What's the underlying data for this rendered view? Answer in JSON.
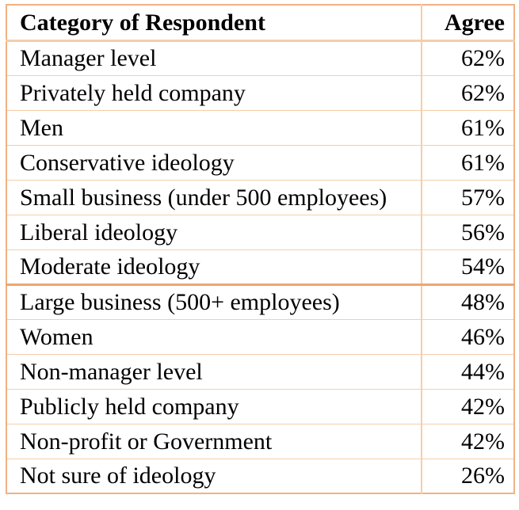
{
  "colors": {
    "page_bg": "#ffffff",
    "border_outer": "#f2b183",
    "border_thin": "#f6cda9",
    "border_thick": "#eda671",
    "text": "#000000"
  },
  "table": {
    "columns": [
      {
        "label": "Category of Respondent"
      },
      {
        "label": "Agree"
      }
    ],
    "rows": [
      {
        "category": "Manager level",
        "agree": "62%"
      },
      {
        "category": "Privately held company",
        "agree": "62%"
      },
      {
        "category": "Men",
        "agree": "61%"
      },
      {
        "category": "Conservative ideology",
        "agree": "61%"
      },
      {
        "category": "Small business (under 500 employees)",
        "agree": "57%"
      },
      {
        "category": "Liberal ideology",
        "agree": "56%"
      },
      {
        "category": "Moderate ideology",
        "agree": "54%"
      },
      {
        "category": "Large business (500+ employees)",
        "agree": "48%"
      },
      {
        "category": "Women",
        "agree": "46%"
      },
      {
        "category": "Non-manager level",
        "agree": "44%"
      },
      {
        "category": "Publicly held company",
        "agree": "42%"
      },
      {
        "category": "Non-profit or Government",
        "agree": "42%"
      },
      {
        "category": "Not sure of ideology",
        "agree": "26%"
      }
    ],
    "thick_rule_after_row_index": 6
  },
  "chart_data": {
    "type": "table",
    "title": "",
    "columns": [
      "Category of Respondent",
      "Agree"
    ],
    "categories": [
      "Manager level",
      "Privately held company",
      "Men",
      "Conservative ideology",
      "Small business (under 500 employees)",
      "Liberal ideology",
      "Moderate ideology",
      "Large business (500+ employees)",
      "Women",
      "Non-manager level",
      "Publicly held company",
      "Non-profit or Government",
      "Not sure of ideology"
    ],
    "values": [
      62,
      62,
      61,
      61,
      57,
      56,
      54,
      48,
      46,
      44,
      42,
      42,
      26
    ],
    "value_unit": "%"
  }
}
